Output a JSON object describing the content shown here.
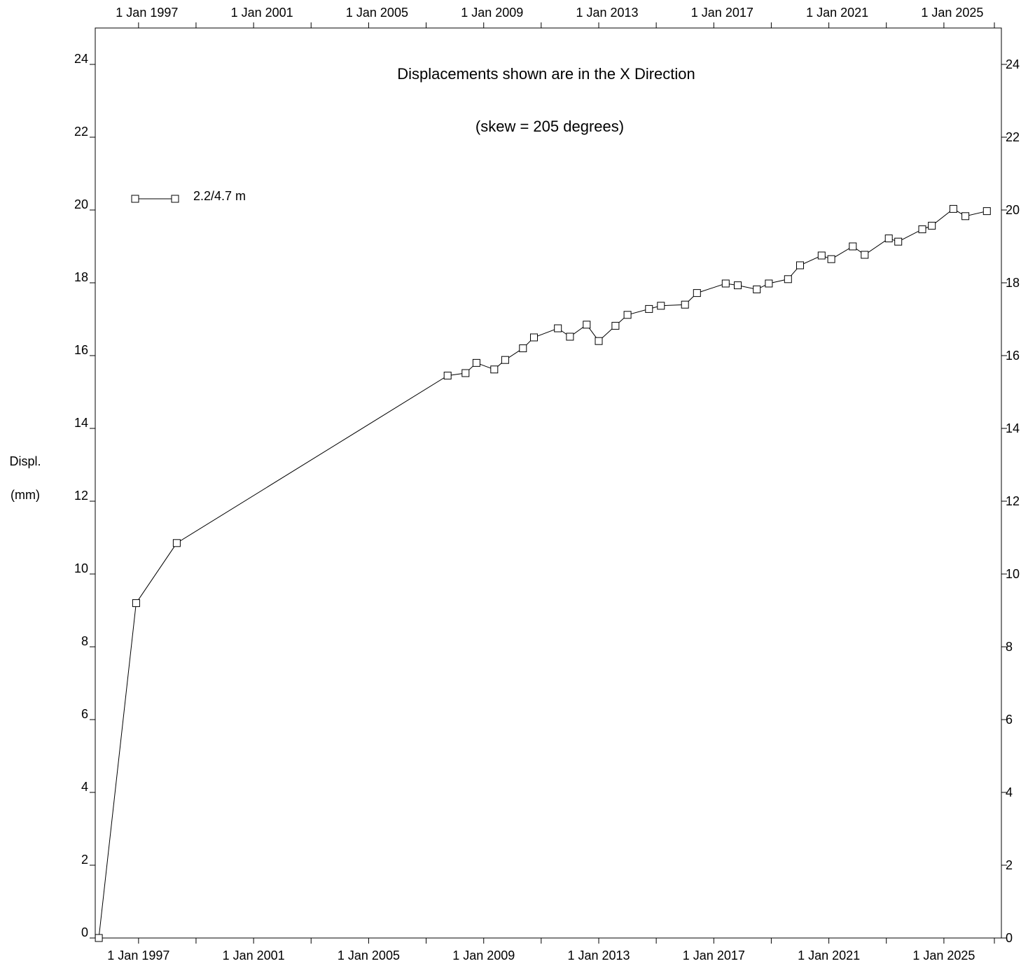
{
  "chart_data": {
    "type": "line",
    "title": "Displacements shown are in the  X Direction",
    "subtitle": "(skew = 205 degrees)",
    "ylabel_line1": "Displ.",
    "ylabel_line2": "(mm)",
    "xlim": [
      "1995-07-01",
      "2027-01-01"
    ],
    "ylim": [
      0,
      25
    ],
    "x_tick_labels": [
      {
        "date": "1997-01-01",
        "label": "1 Jan 1997"
      },
      {
        "date": "2001-01-01",
        "label": "1 Jan 2001"
      },
      {
        "date": "2005-01-01",
        "label": "1 Jan 2005"
      },
      {
        "date": "2009-01-01",
        "label": "1 Jan 2009"
      },
      {
        "date": "2013-01-01",
        "label": "1 Jan 2013"
      },
      {
        "date": "2017-01-01",
        "label": "1 Jan 2017"
      },
      {
        "date": "2021-01-01",
        "label": "1 Jan 2021"
      },
      {
        "date": "2025-01-01",
        "label": "1 Jan 2025"
      }
    ],
    "x_minor_ticks": [
      "1999-01-01",
      "2003-01-01",
      "2007-01-01",
      "2011-01-01",
      "2015-01-01",
      "2019-01-01",
      "2023-01-01",
      "2027-01-01"
    ],
    "y_ticks": [
      0,
      2,
      4,
      6,
      8,
      10,
      12,
      14,
      16,
      18,
      20,
      22,
      24
    ],
    "grid": false,
    "legend_position": "top-left",
    "marker": "open-square",
    "line_color": "#000000",
    "series": [
      {
        "name": "2.2/4.7 m",
        "points": [
          [
            "1995-08-15",
            0.0
          ],
          [
            "1996-12-01",
            9.2
          ],
          [
            "1998-05-01",
            10.85
          ],
          [
            "2007-10-01",
            15.45
          ],
          [
            "2008-05-15",
            15.52
          ],
          [
            "2008-10-01",
            15.8
          ],
          [
            "2009-05-15",
            15.62
          ],
          [
            "2009-10-01",
            15.88
          ],
          [
            "2010-05-15",
            16.2
          ],
          [
            "2010-10-01",
            16.5
          ],
          [
            "2011-08-01",
            16.75
          ],
          [
            "2012-01-01",
            16.52
          ],
          [
            "2012-08-01",
            16.85
          ],
          [
            "2013-01-01",
            16.4
          ],
          [
            "2013-08-01",
            16.82
          ],
          [
            "2014-01-01",
            17.12
          ],
          [
            "2014-10-01",
            17.28
          ],
          [
            "2015-03-01",
            17.37
          ],
          [
            "2016-01-01",
            17.4
          ],
          [
            "2016-06-01",
            17.72
          ],
          [
            "2017-06-01",
            17.98
          ],
          [
            "2017-11-01",
            17.93
          ],
          [
            "2018-07-01",
            17.82
          ],
          [
            "2018-12-01",
            17.98
          ],
          [
            "2019-08-01",
            18.1
          ],
          [
            "2020-01-01",
            18.48
          ],
          [
            "2020-10-01",
            18.75
          ],
          [
            "2021-02-01",
            18.65
          ],
          [
            "2021-11-01",
            19.0
          ],
          [
            "2022-04-01",
            18.77
          ],
          [
            "2023-02-01",
            19.22
          ],
          [
            "2023-06-01",
            19.13
          ],
          [
            "2024-04-01",
            19.47
          ],
          [
            "2024-08-01",
            19.57
          ],
          [
            "2025-05-01",
            20.03
          ],
          [
            "2025-10-01",
            19.83
          ],
          [
            "2026-07-01",
            19.97
          ]
        ]
      }
    ]
  }
}
